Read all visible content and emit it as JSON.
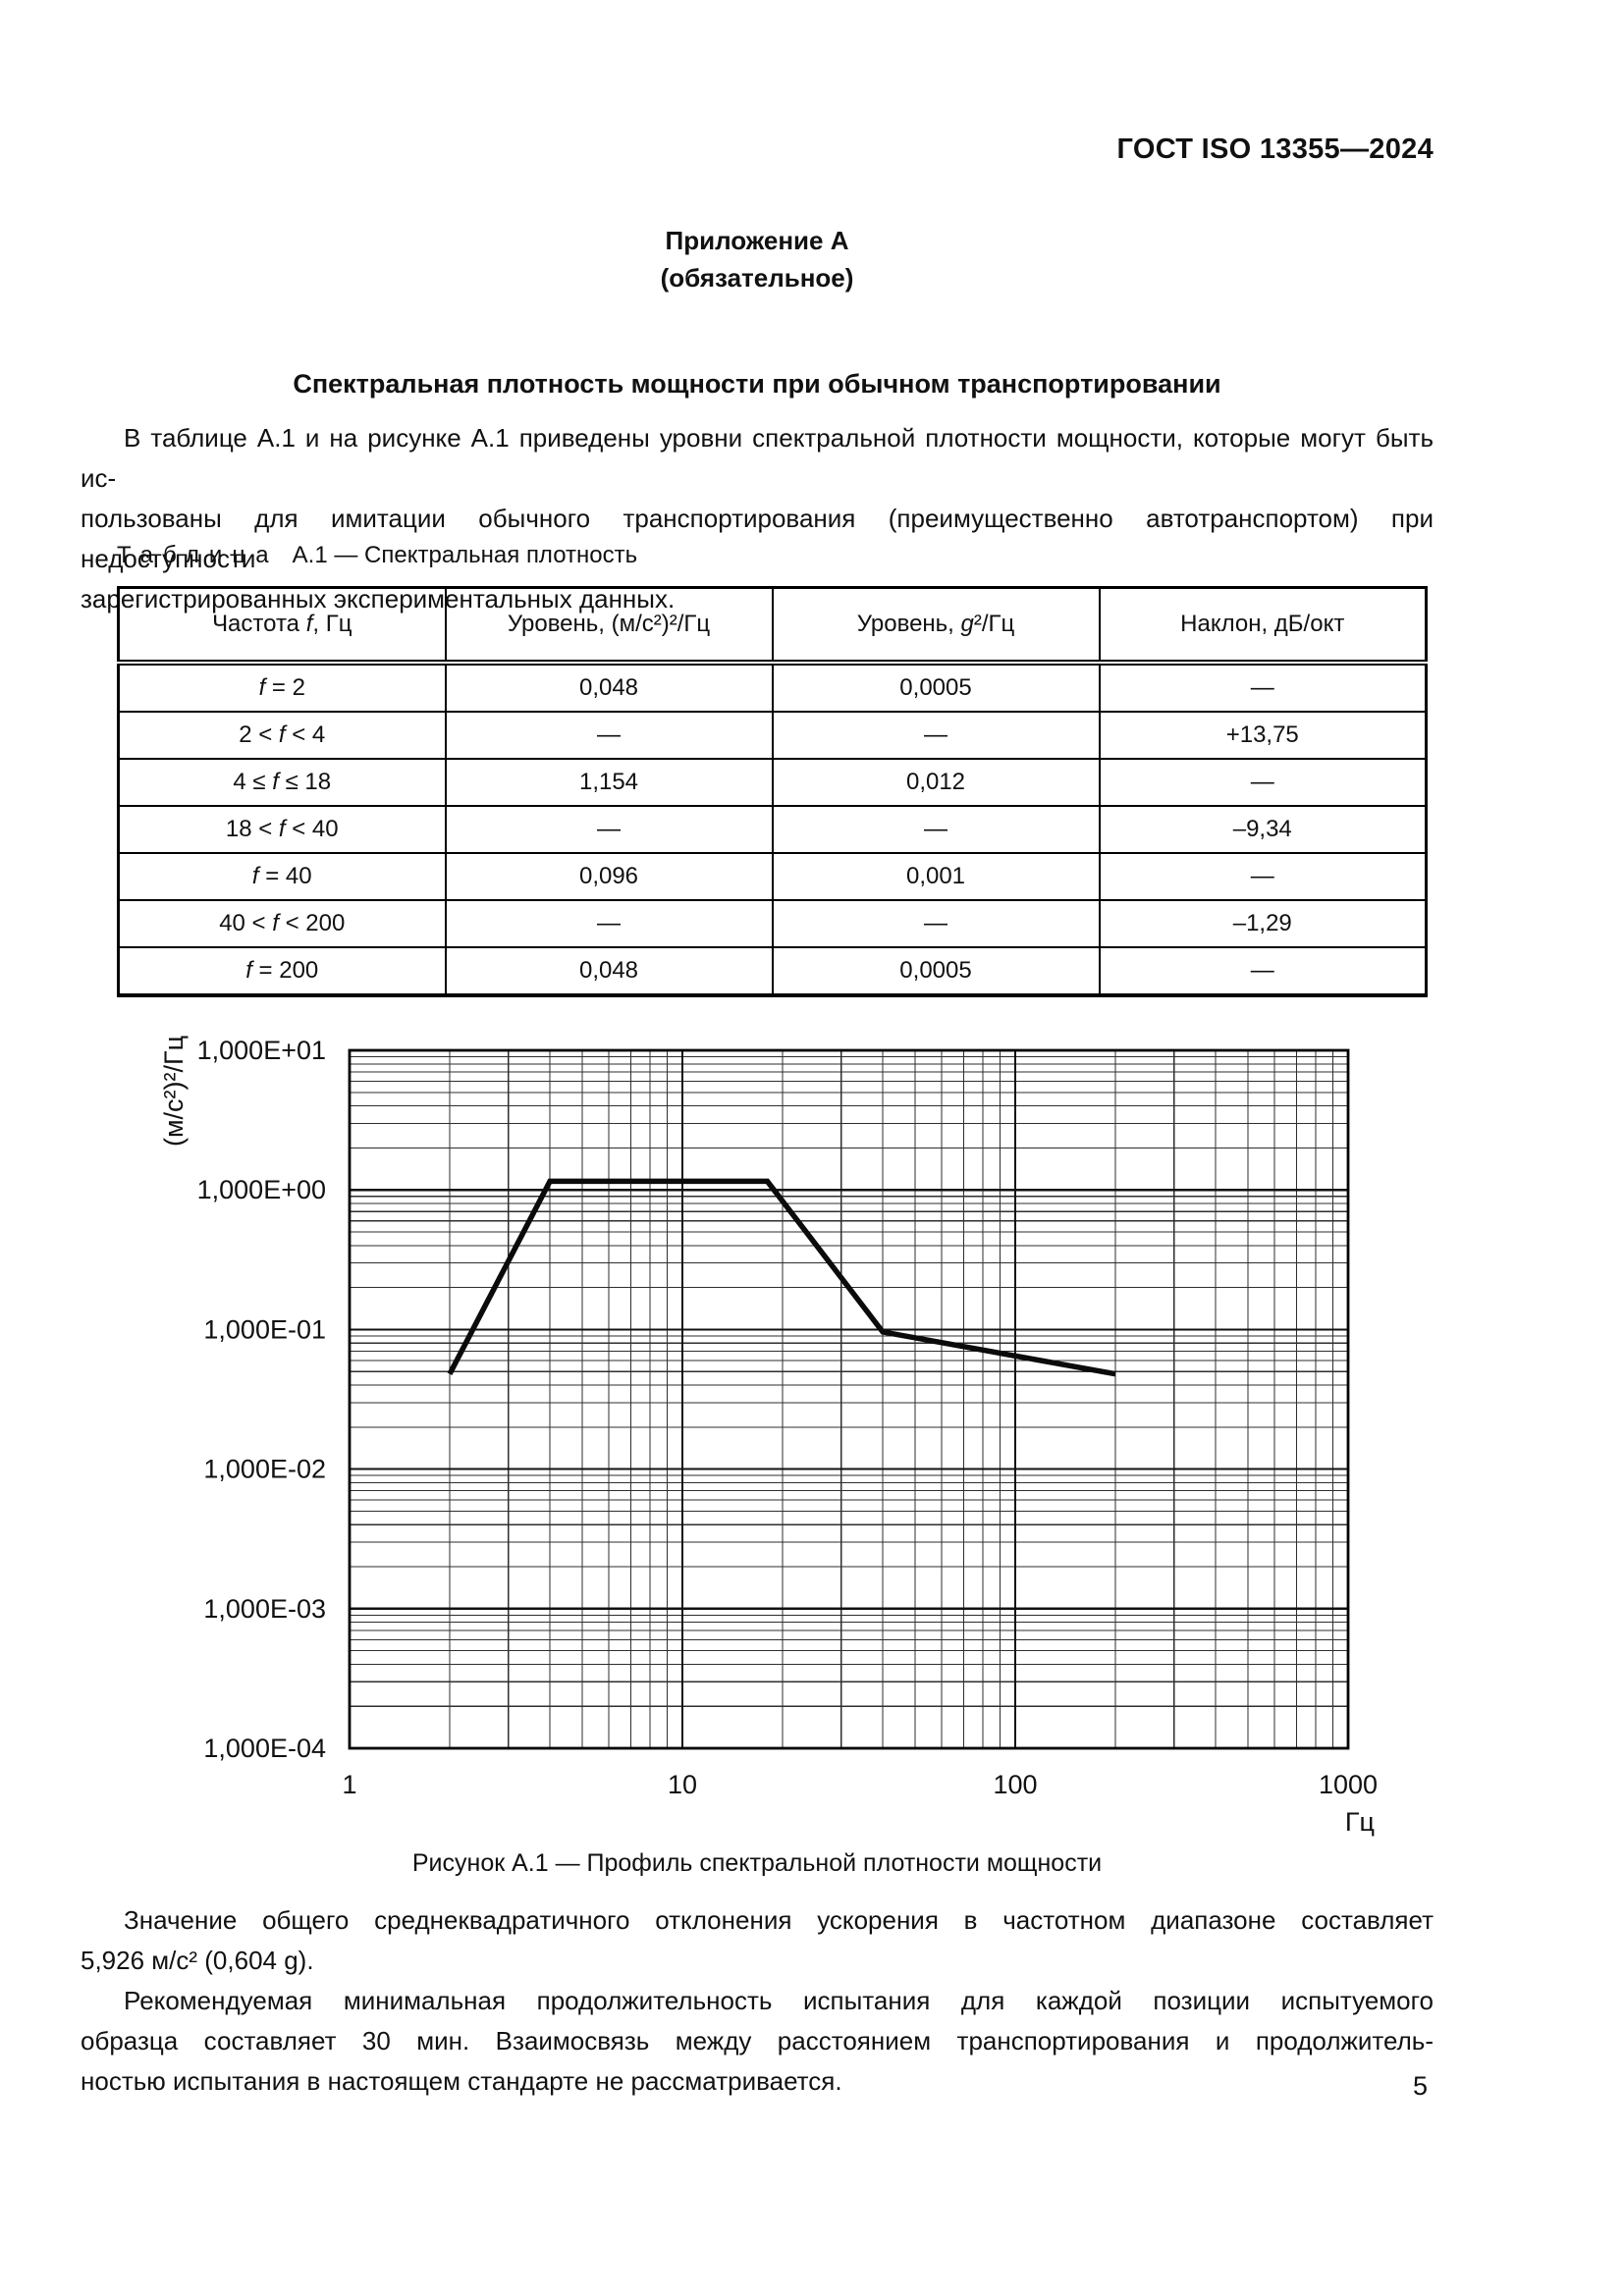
{
  "document": {
    "header": "ГОСТ ISO 13355—2024",
    "page_number": "5"
  },
  "annex": {
    "label": "Приложение А",
    "type": "(обязательное)",
    "title": "Спектральная плотность мощности при обычном транспортировании"
  },
  "intro": {
    "lines": [
      "В таблице А.1 и на рисунке А.1 приведены уровни спектральной плотности мощности, которые могут быть ис-",
      "пользованы для имитации обычного транспортирования (преимущественно автотранспортом) при недоступности",
      "зарегистрированных экспериментальных данных."
    ]
  },
  "table": {
    "caption_label": "Таблица",
    "caption_text": "А.1 — Спектральная плотность",
    "headers": [
      "Частота f, Гц",
      "Уровень, (м/с²)²/Гц",
      "Уровень, g²/Гц",
      "Наклон, дБ/окт"
    ],
    "rows": [
      [
        "f = 2",
        "0,048",
        "0,0005",
        "—"
      ],
      [
        "2 < f < 4",
        "—",
        "—",
        "+13,75"
      ],
      [
        "4 ≤ f ≤ 18",
        "1,154",
        "0,012",
        "—"
      ],
      [
        "18 < f < 40",
        "—",
        "—",
        "–9,34"
      ],
      [
        "f = 40",
        "0,096",
        "0,001",
        "—"
      ],
      [
        "40 < f < 200",
        "—",
        "—",
        "–1,29"
      ],
      [
        "f = 200",
        "0,048",
        "0,0005",
        "—"
      ]
    ]
  },
  "chart_data": {
    "type": "line",
    "series": [
      {
        "name": "Профиль спектральной плотности мощности",
        "x": [
          2,
          4,
          18,
          40,
          200
        ],
        "y": [
          0.048,
          1.154,
          1.154,
          0.096,
          0.048
        ]
      }
    ],
    "xscale": "log",
    "yscale": "log",
    "xlim": [
      1,
      1000
    ],
    "ylim": [
      0.0001,
      10
    ],
    "xlabel": "Гц",
    "ylabel": "(м/с²)²/Гц",
    "x_tick_labels": [
      "1",
      "10",
      "100",
      "1000"
    ],
    "y_tick_labels": [
      "1,000E+01",
      "1,000E+00",
      "1,000E-01",
      "1,000E-02",
      "1,000E-03",
      "1,000E-04"
    ],
    "grid": {
      "major": true,
      "minor": true
    },
    "line_color": "#0b0b0b",
    "line_width": 5.5
  },
  "figure": {
    "caption": "Рисунок А.1 — Профиль спектральной плотности мощности"
  },
  "closing": [
    {
      "lines": [
        "Значение общего среднеквадратичного отклонения ускорения в частотном диапазоне составляет",
        "5,926 м/с² (0,604 g)."
      ]
    },
    {
      "lines": [
        "Рекомендуемая минимальная продолжительность испытания для каждой позиции испытуемого",
        "образца составляет 30 мин. Взаимосвязь между расстоянием транспортирования и продолжитель-",
        "ностью испытания в настоящем стандарте не рассматривается."
      ]
    }
  ],
  "colors": {
    "ink": "#111111",
    "paper": "#ffffff"
  }
}
